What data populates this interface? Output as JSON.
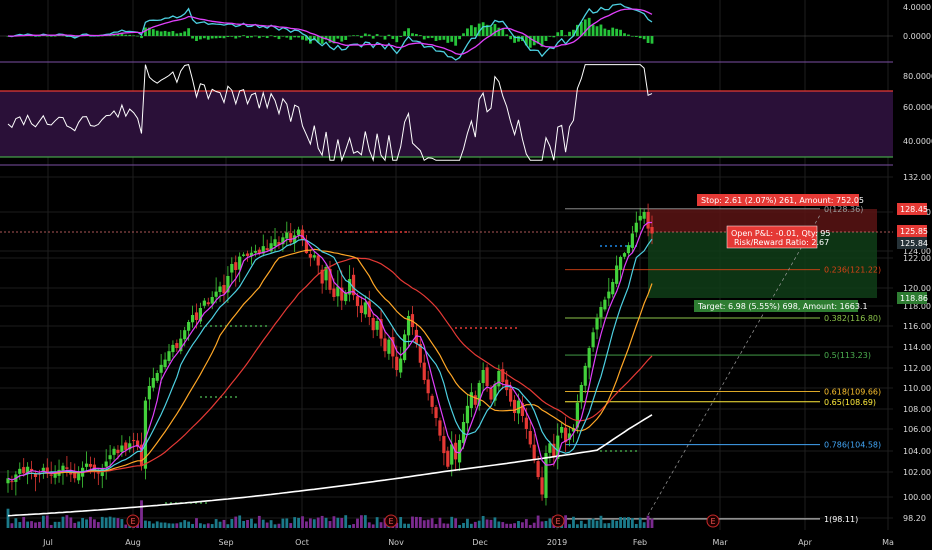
{
  "chart_data": {
    "type": "candlestick",
    "x_axis": {
      "labels": [
        "Jul",
        "Aug",
        "Sep",
        "Oct",
        "Nov",
        "Dec",
        "2019",
        "Feb",
        "Mar",
        "Apr",
        "Ma"
      ]
    },
    "macd_panel": {
      "ticks": [
        "4.0000",
        "0.0000"
      ]
    },
    "rsi_panel": {
      "ticks": [
        "80.0000",
        "60.0000",
        "40.0000"
      ],
      "overbought": 70,
      "oversold": 30
    },
    "price_panel": {
      "ticks": [
        132,
        128,
        124,
        122,
        120,
        118,
        116,
        114,
        112,
        110,
        108,
        106,
        104,
        102,
        100,
        98.2
      ],
      "tick_labels": [
        "132.00",
        "128.00",
        "124.00",
        "122.00",
        "120.00",
        "118.00",
        "116.00",
        "114.00",
        "112.00",
        "110.00",
        "108.00",
        "106.00",
        "104.00",
        "102.00",
        "100.00",
        "98.20"
      ],
      "price_badges": [
        {
          "text": "128.45",
          "color": "#e53935"
        },
        {
          "text": "125.85",
          "color": "#e53935"
        },
        {
          "text": "125.84",
          "color": "#263238"
        },
        {
          "text": "118.86",
          "color": "#2e7d32"
        }
      ],
      "fib_levels": [
        {
          "label": "0(128.36)",
          "value": 128.36,
          "color": "#9e9e9e"
        },
        {
          "label": "0.236(121.22)",
          "value": 121.22,
          "color": "#d84315"
        },
        {
          "label": "0.382(116.80)",
          "value": 116.8,
          "color": "#8bc34a"
        },
        {
          "label": "0.5(113.23)",
          "value": 113.23,
          "color": "#4caf50"
        },
        {
          "label": "0.618(109.66)",
          "value": 109.66,
          "color": "#fbc02d"
        },
        {
          "label": "0.65(108.69)",
          "value": 108.69,
          "color": "#ffeb3b"
        },
        {
          "label": "0.786(104.58)",
          "value": 104.58,
          "color": "#42a5f5"
        },
        {
          "label": "1(98.11)",
          "value": 98.11,
          "color": "#ffffff"
        }
      ],
      "position": {
        "stop_label": "Stop: 2.61 (2.07%) 261, Amount: 752.05",
        "pl_label": "Open P&L: -0.01, Qty: 95",
        "rr_label": "Risk/Reward Ratio: 2.67",
        "target_label": "Target: 6.98 (5.55%) 698, Amount: 1663.1",
        "entry": 125.85,
        "stop": 128.45,
        "target": 118.86
      },
      "event_markers": [
        "E",
        "E",
        "E",
        "E"
      ],
      "candles": {
        "close": [
          101.5,
          101.2,
          101.8,
          102.3,
          101.9,
          102.5,
          102.1,
          101.6,
          101.8,
          102.4,
          102.0,
          101.7,
          101.9,
          102.2,
          102.6,
          102.3,
          101.8,
          101.5,
          101.9,
          102.4,
          102.8,
          102.5,
          102.1,
          101.9,
          102.3,
          103.0,
          103.6,
          104.2,
          103.8,
          104.5,
          104.1,
          104.7,
          104.9,
          104.4,
          102.6,
          108.8,
          110.2,
          111.0,
          111.5,
          112.3,
          112.8,
          113.6,
          114.2,
          113.9,
          114.8,
          115.6,
          116.4,
          117.1,
          116.6,
          117.8,
          118.6,
          118.2,
          119.0,
          119.6,
          120.1,
          119.4,
          120.8,
          121.6,
          121.2,
          122.4,
          123.0,
          122.6,
          123.5,
          124.0,
          123.3,
          124.5,
          124.1,
          124.8,
          125.2,
          124.6,
          125.4,
          125.9,
          124.9,
          125.6,
          126.2,
          125.1,
          123.4,
          122.1,
          122.8,
          121.5,
          120.3,
          121.4,
          119.8,
          119.0,
          120.1,
          118.6,
          119.5,
          120.6,
          119.2,
          118.0,
          117.3,
          118.4,
          116.9,
          115.6,
          116.5,
          114.8,
          113.6,
          114.7,
          113.1,
          111.8,
          112.9,
          115.2,
          117.0,
          115.9,
          114.3,
          112.5,
          110.8,
          109.5,
          108.2,
          107.1,
          105.4,
          103.8,
          102.5,
          104.6,
          103.2,
          105.0,
          106.7,
          108.3,
          109.6,
          108.4,
          110.5,
          111.8,
          110.2,
          108.9,
          110.4,
          111.7,
          110.6,
          109.8,
          108.7,
          107.6,
          108.8,
          107.3,
          106.0,
          104.6,
          103.1,
          101.6,
          100.2,
          103.8,
          104.7,
          103.5,
          105.4,
          106.2,
          104.8,
          105.6,
          106.1,
          108.6,
          110.3,
          112.2,
          113.9,
          115.4,
          116.8,
          117.9,
          118.7,
          119.6,
          120.4,
          121.5,
          122.3,
          123.4,
          124.6,
          125.8,
          126.9,
          127.6,
          128.0,
          126.3,
          125.8
        ]
      }
    },
    "volume": {
      "right_label": "98.20"
    }
  }
}
